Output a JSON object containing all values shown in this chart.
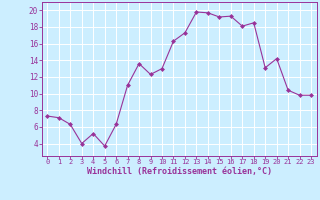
{
  "x": [
    0,
    1,
    2,
    3,
    4,
    5,
    6,
    7,
    8,
    9,
    10,
    11,
    12,
    13,
    14,
    15,
    16,
    17,
    18,
    19,
    20,
    21,
    22,
    23
  ],
  "y": [
    7.3,
    7.1,
    6.3,
    4.0,
    5.2,
    3.7,
    6.3,
    11.0,
    13.6,
    12.3,
    13.0,
    16.3,
    17.3,
    19.8,
    19.7,
    19.2,
    19.3,
    18.1,
    18.5,
    13.1,
    14.2,
    10.4,
    9.8,
    9.8
  ],
  "line_color": "#993399",
  "marker": "D",
  "marker_size": 2,
  "bg_color": "#cceeff",
  "grid_color": "#ffffff",
  "xlabel": "Windchill (Refroidissement éolien,°C)",
  "xlabel_color": "#993399",
  "tick_color": "#993399",
  "spine_color": "#993399",
  "xlim": [
    -0.5,
    23.5
  ],
  "ylim": [
    2.5,
    21.0
  ],
  "yticks": [
    4,
    6,
    8,
    10,
    12,
    14,
    16,
    18,
    20
  ],
  "xticks": [
    0,
    1,
    2,
    3,
    4,
    5,
    6,
    7,
    8,
    9,
    10,
    11,
    12,
    13,
    14,
    15,
    16,
    17,
    18,
    19,
    20,
    21,
    22,
    23
  ],
  "figsize": [
    3.2,
    2.0
  ],
  "dpi": 100
}
